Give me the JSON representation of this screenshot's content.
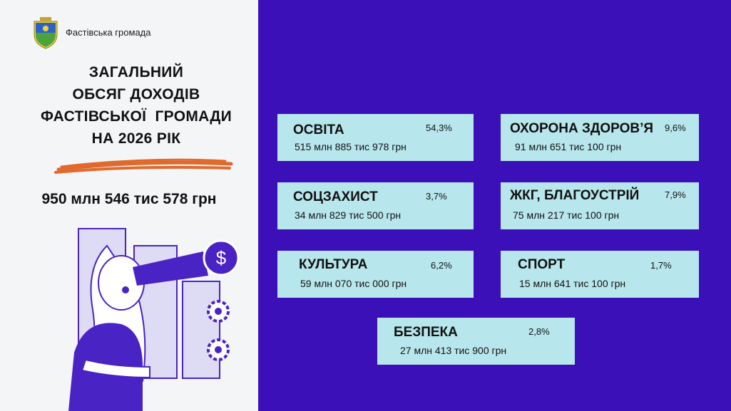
{
  "header": {
    "org_name": "Фастівська громада"
  },
  "title": {
    "line1": "ЗАГАЛЬНИЙ",
    "line2": "ОБСЯГ ДОХОДІВ",
    "line3": "ФАСТІВСЬКОЇ  ГРОМАДИ",
    "line4": "НА 2026 РІК"
  },
  "total": "950 млн 546 тис 578 грн",
  "colors": {
    "panel": "#3c10b8",
    "card": "#b7e6ec",
    "accent_stroke": "#e0692c",
    "illustration": "#4a23c4"
  },
  "icons": [
    "coat-of-arms-icon",
    "dollar-icon",
    "gear-icon"
  ],
  "categories": [
    {
      "name": "ОСВІТА",
      "percent": "54,3%",
      "amount": "515 млн 885 тис 978 грн"
    },
    {
      "name": "ОХОРОНА ЗДОРОВ’Я",
      "percent": "9,6%",
      "amount": "91 млн 651 тис 100 грн"
    },
    {
      "name": "СОЦЗАХИСТ",
      "percent": "3,7%",
      "amount": "34 млн 829 тис 500 грн"
    },
    {
      "name": "ЖКГ, БЛАГОУСТРІЙ",
      "percent": "7,9%",
      "amount": "75 млн 217 тис 100 грн"
    },
    {
      "name": "КУЛЬТУРА",
      "percent": "6,2%",
      "amount": "59 млн 070 тис 000 грн"
    },
    {
      "name": "СПОРТ",
      "percent": "1,7%",
      "amount": "15 млн 641 тис 100 грн"
    },
    {
      "name": "БЕЗПЕКА",
      "percent": "2,8%",
      "amount": "27 млн 413 тис 900 грн"
    }
  ]
}
